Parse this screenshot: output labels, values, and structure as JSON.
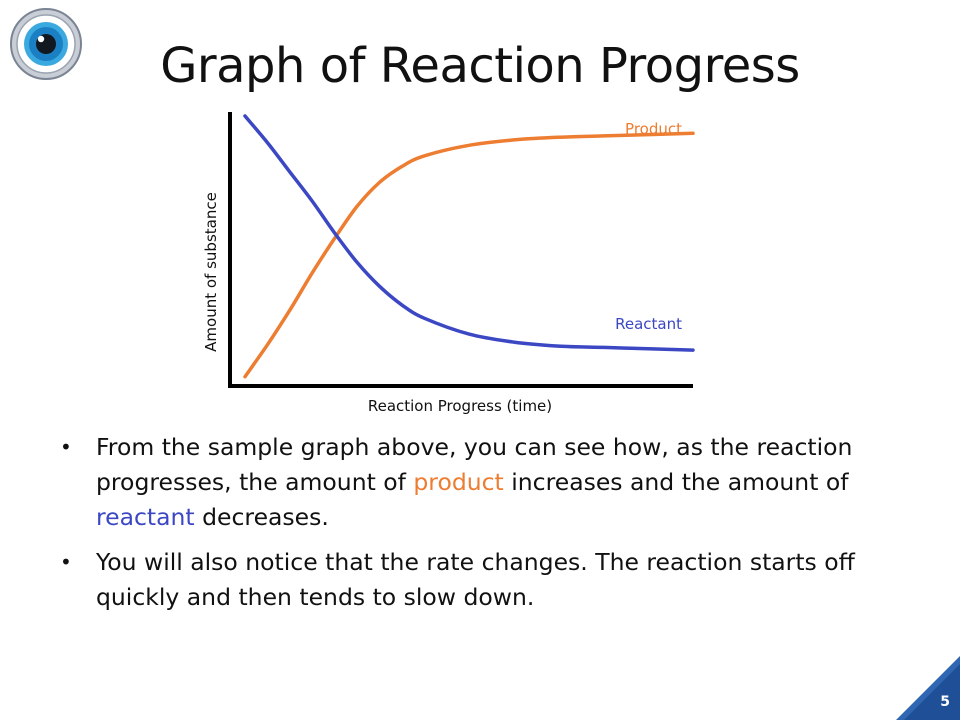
{
  "slide": {
    "title": "Graph of Reaction Progress",
    "page_number": "5"
  },
  "logo": {
    "icon": "eye-icon"
  },
  "chart_data": {
    "type": "line",
    "title": "",
    "xlabel": "Reaction Progress (time)",
    "ylabel": "Amount of substance",
    "xlim": [
      0,
      10
    ],
    "ylim": [
      0,
      10
    ],
    "grid": false,
    "series": [
      {
        "name": "Product",
        "color": "#ed7d31",
        "x": [
          0,
          0.5,
          1,
          1.5,
          2,
          2.5,
          3,
          3.5,
          4,
          5,
          6,
          7,
          8,
          9,
          10
        ],
        "y": [
          0.2,
          1.4,
          2.7,
          4.1,
          5.4,
          6.6,
          7.5,
          8.1,
          8.5,
          8.9,
          9.1,
          9.2,
          9.25,
          9.3,
          9.35
        ]
      },
      {
        "name": "Reactant",
        "color": "#3c47c4",
        "x": [
          0,
          0.5,
          1,
          1.5,
          2,
          2.5,
          3,
          3.5,
          4,
          5,
          6,
          7,
          8,
          9,
          10
        ],
        "y": [
          10.0,
          9.0,
          7.9,
          6.8,
          5.6,
          4.5,
          3.6,
          2.9,
          2.4,
          1.8,
          1.5,
          1.35,
          1.3,
          1.25,
          1.2
        ]
      }
    ]
  },
  "bullets": [
    {
      "parts": [
        "From the sample graph above, you can see how, as the reaction progresses, the amount of ",
        "product",
        " increases and the amount of ",
        "reactant",
        " decreases."
      ]
    },
    {
      "text": "You will also notice that the rate changes.  The reaction starts off quickly and then tends to slow down."
    }
  ],
  "colors": {
    "product": "#ed7d31",
    "reactant": "#3c47c4",
    "corner": "#2f67b3"
  }
}
